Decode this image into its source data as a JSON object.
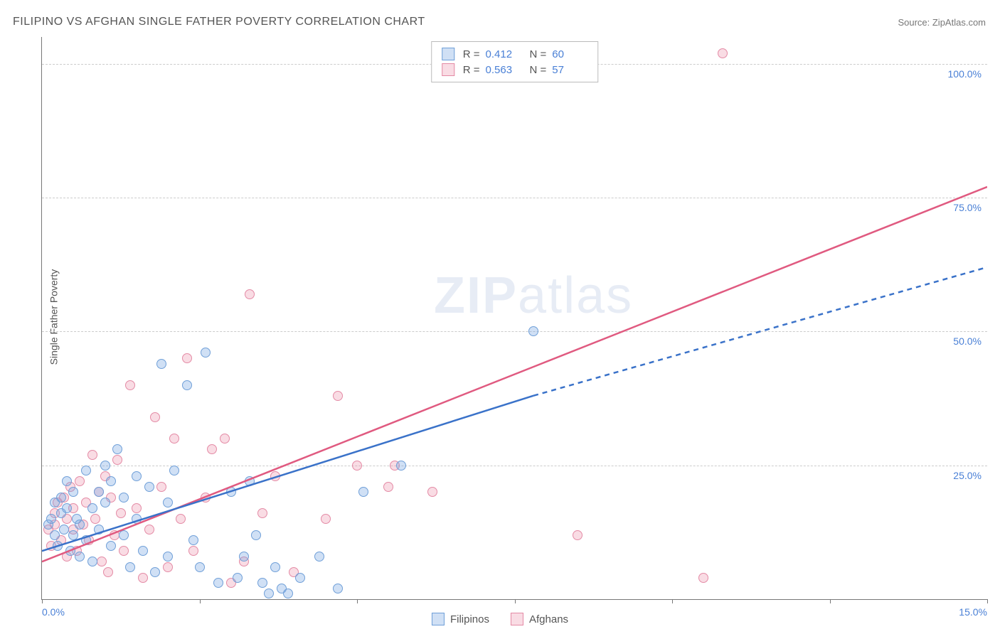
{
  "chart": {
    "type": "scatter",
    "title": "FILIPINO VS AFGHAN SINGLE FATHER POVERTY CORRELATION CHART",
    "source_label": "Source: ZipAtlas.com",
    "ylabel": "Single Father Poverty",
    "watermark_a": "ZIP",
    "watermark_b": "atlas",
    "xlim": [
      0,
      15
    ],
    "ylim": [
      0,
      105
    ],
    "x_ticks": [
      0,
      2.5,
      5,
      7.5,
      10,
      12.5,
      15
    ],
    "x_tick_labels": {
      "0": "0.0%",
      "15": "15.0%"
    },
    "y_gridlines": [
      25,
      50,
      75,
      100
    ],
    "y_tick_labels": {
      "25": "25.0%",
      "50": "50.0%",
      "75": "75.0%",
      "100": "100.0%"
    },
    "background_color": "#ffffff",
    "grid_color": "#cccccc",
    "axis_color": "#777777",
    "tick_label_color": "#4a80d6",
    "series": {
      "filipinos": {
        "label": "Filipinos",
        "marker_fill": "rgba(120,165,225,0.35)",
        "marker_stroke": "#6f9fd8",
        "line_color": "#3a72c9",
        "line_width": 2.5,
        "r_value": "0.412",
        "n_value": "60",
        "trend_solid": {
          "x1": 0,
          "y1": 9,
          "x2": 7.8,
          "y2": 38
        },
        "trend_dashed": {
          "x1": 7.8,
          "y1": 38,
          "x2": 15,
          "y2": 62
        },
        "points": [
          [
            0.1,
            14
          ],
          [
            0.15,
            15
          ],
          [
            0.2,
            12
          ],
          [
            0.2,
            18
          ],
          [
            0.25,
            10
          ],
          [
            0.3,
            16
          ],
          [
            0.3,
            19
          ],
          [
            0.35,
            13
          ],
          [
            0.4,
            17
          ],
          [
            0.4,
            22
          ],
          [
            0.45,
            9
          ],
          [
            0.5,
            12
          ],
          [
            0.5,
            20
          ],
          [
            0.55,
            15
          ],
          [
            0.6,
            8
          ],
          [
            0.6,
            14
          ],
          [
            0.7,
            11
          ],
          [
            0.7,
            24
          ],
          [
            0.8,
            17
          ],
          [
            0.8,
            7
          ],
          [
            0.9,
            20
          ],
          [
            0.9,
            13
          ],
          [
            1.0,
            25
          ],
          [
            1.0,
            18
          ],
          [
            1.1,
            22
          ],
          [
            1.1,
            10
          ],
          [
            1.2,
            28
          ],
          [
            1.3,
            19
          ],
          [
            1.3,
            12
          ],
          [
            1.4,
            6
          ],
          [
            1.5,
            23
          ],
          [
            1.5,
            15
          ],
          [
            1.6,
            9
          ],
          [
            1.7,
            21
          ],
          [
            1.8,
            5
          ],
          [
            1.9,
            44
          ],
          [
            2.0,
            18
          ],
          [
            2.0,
            8
          ],
          [
            2.1,
            24
          ],
          [
            2.3,
            40
          ],
          [
            2.4,
            11
          ],
          [
            2.5,
            6
          ],
          [
            2.6,
            46
          ],
          [
            2.8,
            3
          ],
          [
            3.0,
            20
          ],
          [
            3.1,
            4
          ],
          [
            3.2,
            8
          ],
          [
            3.3,
            22
          ],
          [
            3.4,
            12
          ],
          [
            3.5,
            3
          ],
          [
            3.6,
            1
          ],
          [
            3.7,
            6
          ],
          [
            3.8,
            2
          ],
          [
            3.9,
            1
          ],
          [
            4.1,
            4
          ],
          [
            4.4,
            8
          ],
          [
            4.7,
            2
          ],
          [
            5.1,
            20
          ],
          [
            5.7,
            25
          ],
          [
            7.8,
            50
          ]
        ]
      },
      "afghans": {
        "label": "Afghans",
        "marker_fill": "rgba(235,140,165,0.30)",
        "marker_stroke": "#e48aa5",
        "line_color": "#e05a80",
        "line_width": 2.5,
        "r_value": "0.563",
        "n_value": "57",
        "trend_solid": {
          "x1": 0,
          "y1": 7,
          "x2": 15,
          "y2": 77
        },
        "points": [
          [
            0.1,
            13
          ],
          [
            0.15,
            10
          ],
          [
            0.2,
            16
          ],
          [
            0.2,
            14
          ],
          [
            0.25,
            18
          ],
          [
            0.3,
            11
          ],
          [
            0.35,
            19
          ],
          [
            0.4,
            15
          ],
          [
            0.4,
            8
          ],
          [
            0.45,
            21
          ],
          [
            0.5,
            13
          ],
          [
            0.5,
            17
          ],
          [
            0.55,
            9
          ],
          [
            0.6,
            22
          ],
          [
            0.65,
            14
          ],
          [
            0.7,
            18
          ],
          [
            0.75,
            11
          ],
          [
            0.8,
            27
          ],
          [
            0.85,
            15
          ],
          [
            0.9,
            20
          ],
          [
            0.95,
            7
          ],
          [
            1.0,
            23
          ],
          [
            1.05,
            5
          ],
          [
            1.1,
            19
          ],
          [
            1.15,
            12
          ],
          [
            1.2,
            26
          ],
          [
            1.25,
            16
          ],
          [
            1.3,
            9
          ],
          [
            1.4,
            40
          ],
          [
            1.5,
            17
          ],
          [
            1.6,
            4
          ],
          [
            1.7,
            13
          ],
          [
            1.8,
            34
          ],
          [
            1.9,
            21
          ],
          [
            2.0,
            6
          ],
          [
            2.1,
            30
          ],
          [
            2.2,
            15
          ],
          [
            2.3,
            45
          ],
          [
            2.4,
            9
          ],
          [
            2.6,
            19
          ],
          [
            2.7,
            28
          ],
          [
            2.9,
            30
          ],
          [
            3.0,
            3
          ],
          [
            3.2,
            7
          ],
          [
            3.3,
            57
          ],
          [
            3.5,
            16
          ],
          [
            3.7,
            23
          ],
          [
            4.0,
            5
          ],
          [
            4.5,
            15
          ],
          [
            4.7,
            38
          ],
          [
            5.0,
            25
          ],
          [
            5.5,
            21
          ],
          [
            5.6,
            25
          ],
          [
            6.2,
            20
          ],
          [
            8.5,
            12
          ],
          [
            10.5,
            4
          ],
          [
            10.8,
            102
          ]
        ]
      }
    },
    "legend": {
      "swatch_size": 18,
      "items": [
        "filipinos",
        "afghans"
      ]
    }
  }
}
